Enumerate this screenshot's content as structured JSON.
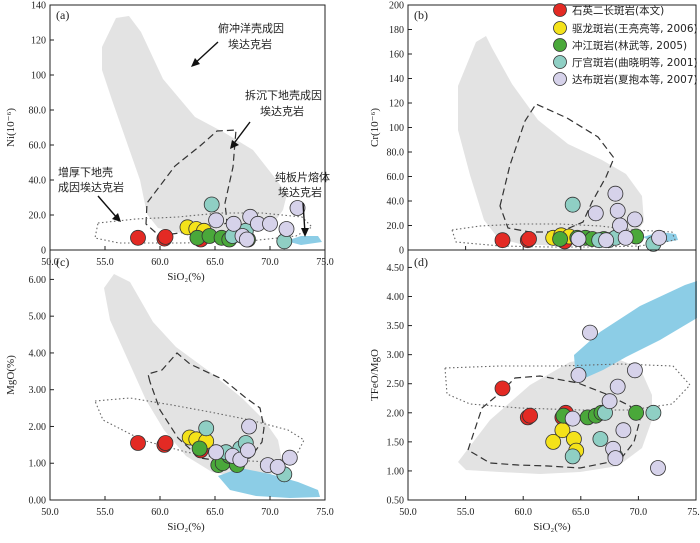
{
  "colors": {
    "gray_field": "#e3e3e3",
    "blue_field": "#8ccde6",
    "series": [
      "#e32a24",
      "#f4e21a",
      "#4aa83a",
      "#8fcfc4",
      "#d6d2ea"
    ]
  },
  "legend": [
    {
      "label": "石英二长斑岩(本文)"
    },
    {
      "label": "驱龙斑岩(王亮亮等, 2006)"
    },
    {
      "label": "冲江斑岩(林武等, 2005)"
    },
    {
      "label": "厅宫斑岩(曲晓明等, 2001)"
    },
    {
      "label": "达布斑岩(夏抱本等, 2007)"
    }
  ],
  "chart_data": [
    {
      "type": "scatter",
      "panel_label": "(a)",
      "xlabel": "SiO₂(%)",
      "ylabel": "Ni(10⁻⁶)",
      "xlim": [
        50,
        75
      ],
      "ylim": [
        0,
        140
      ],
      "xticks": [
        "50.0",
        "55.0",
        "60.0",
        "65.0",
        "70.0",
        "75.0"
      ],
      "yticks": [
        "0",
        "20.0",
        "40.0",
        "60.0",
        "80.0",
        "100",
        "120",
        "140"
      ],
      "annotations": [
        {
          "text": "俯冲洋壳成因"
        },
        {
          "text": "埃达克岩"
        },
        {
          "text": "拆沉下地壳成因"
        },
        {
          "text": "埃达克岩"
        },
        {
          "text": "增厚下地壳"
        },
        {
          "text": "成因埃达克岩"
        },
        {
          "text": "纯板片熔体"
        },
        {
          "text": "埃达克岩"
        }
      ],
      "series": [
        {
          "points": [
            [
              58.0,
              7
            ],
            [
              60.4,
              6.5
            ],
            [
              60.5,
              7.5
            ],
            [
              63.7,
              6
            ]
          ]
        },
        {
          "points": [
            [
              62.5,
              13
            ],
            [
              63.3,
              12
            ],
            [
              64.0,
              11
            ]
          ]
        },
        {
          "points": [
            [
              63.4,
              7
            ],
            [
              64.5,
              8
            ],
            [
              65.6,
              7
            ],
            [
              66.3,
              6
            ],
            [
              68.0,
              6
            ]
          ]
        },
        {
          "points": [
            [
              64.7,
              26
            ],
            [
              66.6,
              8
            ],
            [
              67.8,
              11
            ],
            [
              71.3,
              5
            ]
          ]
        },
        {
          "points": [
            [
              65.1,
              17
            ],
            [
              66.7,
              15
            ],
            [
              67.5,
              8
            ],
            [
              67.9,
              6
            ],
            [
              68.2,
              19
            ],
            [
              68.9,
              15
            ],
            [
              70.0,
              15
            ],
            [
              71.5,
              12
            ],
            [
              72.5,
              24
            ]
          ]
        }
      ]
    },
    {
      "type": "scatter",
      "panel_label": "(b)",
      "xlabel": "",
      "ylabel": "Cr(10⁻⁶)",
      "xlim": [
        50,
        75
      ],
      "ylim": [
        0,
        200
      ],
      "xticks": [],
      "yticks": [
        "0",
        "20.0",
        "40.0",
        "60.0",
        "80.0",
        "100",
        "120",
        "140",
        "160",
        "180",
        "200"
      ],
      "series": [
        {
          "points": [
            [
              58.2,
              8
            ],
            [
              60.4,
              8
            ],
            [
              60.5,
              9
            ],
            [
              63.6,
              7
            ]
          ]
        },
        {
          "points": [
            [
              62.6,
              10
            ],
            [
              63.3,
              12
            ],
            [
              64.0,
              11
            ]
          ]
        },
        {
          "points": [
            [
              63.2,
              9
            ],
            [
              64.7,
              10
            ],
            [
              65.4,
              10
            ],
            [
              66.0,
              9
            ],
            [
              67.0,
              9
            ],
            [
              69.8,
              11
            ]
          ]
        },
        {
          "points": [
            [
              64.3,
              37
            ],
            [
              66.6,
              8
            ],
            [
              67.4,
              8
            ],
            [
              68.0,
              10
            ],
            [
              71.3,
              5
            ]
          ]
        },
        {
          "points": [
            [
              64.8,
              9
            ],
            [
              66.3,
              30
            ],
            [
              67.2,
              8
            ],
            [
              68.0,
              46
            ],
            [
              68.2,
              32
            ],
            [
              68.4,
              20
            ],
            [
              68.9,
              10
            ],
            [
              69.7,
              25
            ],
            [
              71.8,
              10
            ]
          ]
        }
      ]
    },
    {
      "type": "scatter",
      "panel_label": "(c)",
      "xlabel": "SiO₂(%)",
      "ylabel": "MgO(%)",
      "xlim": [
        50,
        75
      ],
      "ylim": [
        0,
        6.8
      ],
      "xticks": [
        "50.0",
        "55.0",
        "60.0",
        "65.0",
        "70.0",
        "75.0"
      ],
      "yticks": [
        "0.00",
        "1.00",
        "2.00",
        "3.00",
        "4.00",
        "5.00",
        "6.00"
      ],
      "series": [
        {
          "points": [
            [
              58.0,
              1.55
            ],
            [
              60.4,
              1.5
            ],
            [
              60.5,
              1.55
            ],
            [
              63.7,
              1.35
            ]
          ]
        },
        {
          "points": [
            [
              62.7,
              1.7
            ],
            [
              63.3,
              1.65
            ],
            [
              64.2,
              1.6
            ]
          ]
        },
        {
          "points": [
            [
              63.6,
              1.4
            ],
            [
              65.3,
              0.95
            ],
            [
              65.7,
              1.0
            ],
            [
              66.3,
              1.2
            ],
            [
              67.0,
              0.95
            ]
          ]
        },
        {
          "points": [
            [
              64.2,
              1.95
            ],
            [
              66.0,
              1.3
            ],
            [
              67.3,
              1.4
            ],
            [
              67.8,
              1.55
            ],
            [
              71.3,
              0.7
            ]
          ]
        },
        {
          "points": [
            [
              65.1,
              1.3
            ],
            [
              66.6,
              1.2
            ],
            [
              67.3,
              1.1
            ],
            [
              68.0,
              1.35
            ],
            [
              68.1,
              2.0
            ],
            [
              69.8,
              0.95
            ],
            [
              70.7,
              0.9
            ],
            [
              71.8,
              1.15
            ]
          ]
        }
      ]
    },
    {
      "type": "scatter",
      "panel_label": "(d)",
      "xlabel": "SiO₂(%)",
      "ylabel": "TFeO/MgO",
      "xlim": [
        50,
        75
      ],
      "ylim": [
        0.5,
        4.8
      ],
      "xticks": [
        "50.0",
        "55.0",
        "60.0",
        "65.0",
        "70.0",
        "75.0"
      ],
      "yticks": [
        "0.50",
        "1.00",
        "1.50",
        "2.00",
        "2.50",
        "3.00",
        "3.50",
        "4.00",
        "4.50"
      ],
      "series": [
        {
          "points": [
            [
              58.2,
              2.42
            ],
            [
              60.4,
              1.92
            ],
            [
              60.6,
              1.95
            ],
            [
              63.4,
              1.92
            ],
            [
              63.7,
              2.0
            ]
          ]
        },
        {
          "points": [
            [
              62.6,
              1.5
            ],
            [
              63.4,
              1.7
            ],
            [
              64.4,
              1.55
            ],
            [
              64.6,
              1.35
            ]
          ]
        },
        {
          "points": [
            [
              63.5,
              1.95
            ],
            [
              65.6,
              1.92
            ],
            [
              66.3,
              1.95
            ],
            [
              66.8,
              2.0
            ],
            [
              69.8,
              2.0
            ]
          ]
        },
        {
          "points": [
            [
              64.3,
              1.25
            ],
            [
              66.7,
              1.55
            ],
            [
              67.1,
              2.0
            ],
            [
              68.0,
              1.25
            ],
            [
              71.3,
              2.0
            ]
          ]
        },
        {
          "points": [
            [
              64.3,
              1.9
            ],
            [
              64.8,
              2.65
            ],
            [
              65.8,
              3.38
            ],
            [
              67.5,
              2.2
            ],
            [
              67.8,
              1.38
            ],
            [
              68.0,
              1.22
            ],
            [
              68.2,
              2.45
            ],
            [
              68.7,
              1.7
            ],
            [
              69.7,
              2.73
            ],
            [
              71.7,
              1.05
            ]
          ]
        }
      ]
    }
  ]
}
